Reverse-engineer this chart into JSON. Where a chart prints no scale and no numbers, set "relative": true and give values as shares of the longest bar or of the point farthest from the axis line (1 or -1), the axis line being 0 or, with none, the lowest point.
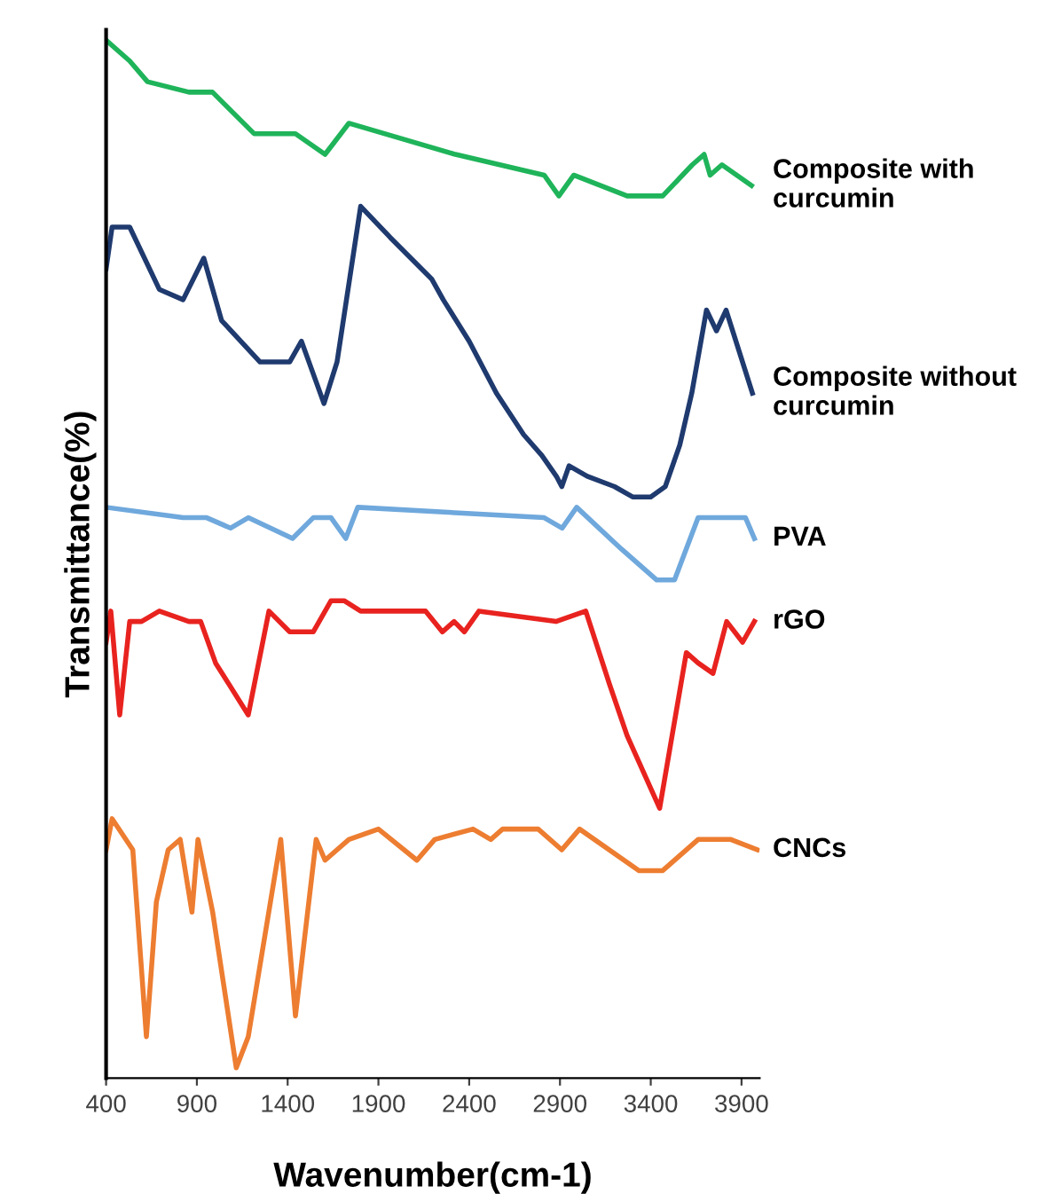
{
  "chart_data": {
    "type": "line",
    "relative": true,
    "xlabel": "Wavenumber(cm-1)",
    "ylabel": "Transmittance(%)",
    "xlim": [
      400,
      4000
    ],
    "xticks": [
      400,
      900,
      1400,
      1900,
      2400,
      2900,
      3400,
      3900
    ],
    "grid": false,
    "legend": false,
    "marker": "none",
    "line_style": "solid",
    "series": [
      {
        "name": "Composite with curcumin",
        "color": "#1fb45a",
        "x": [
          400,
          530,
          628,
          856,
          986,
          1215,
          1443,
          1606,
          1737,
          2324,
          2813,
          2894,
          2976,
          3270,
          3466,
          3629,
          3694,
          3727,
          3792,
          3955
        ],
        "values": [
          1.0,
          0.98,
          0.96,
          0.95,
          0.95,
          0.91,
          0.91,
          0.89,
          0.92,
          0.89,
          0.87,
          0.85,
          0.87,
          0.85,
          0.85,
          0.88,
          0.89,
          0.87,
          0.88,
          0.86
        ]
      },
      {
        "name": "Composite without curcumin",
        "color": "#1f3a6e",
        "x": [
          400,
          433,
          530,
          693,
          824,
          938,
          1036,
          1248,
          1411,
          1476,
          1600,
          1672,
          1802,
          1965,
          2193,
          2257,
          2400,
          2550,
          2700,
          2800,
          2880,
          2910,
          2950,
          3050,
          3200,
          3300,
          3400,
          3480,
          3560,
          3626,
          3707,
          3762,
          3815,
          3960
        ],
        "values": [
          0.78,
          0.82,
          0.82,
          0.76,
          0.75,
          0.79,
          0.73,
          0.69,
          0.69,
          0.71,
          0.65,
          0.69,
          0.84,
          0.81,
          0.77,
          0.75,
          0.71,
          0.66,
          0.62,
          0.6,
          0.58,
          0.57,
          0.59,
          0.58,
          0.57,
          0.56,
          0.56,
          0.57,
          0.61,
          0.66,
          0.74,
          0.72,
          0.74,
          0.66
        ]
      },
      {
        "name": "PVA",
        "color": "#6fa8dc",
        "x": [
          400,
          824,
          954,
          1085,
          1183,
          1427,
          1541,
          1639,
          1720,
          1786,
          2813,
          2912,
          2992,
          3237,
          3433,
          3531,
          3661,
          3792,
          3922,
          3971
        ],
        "values": [
          0.55,
          0.54,
          0.54,
          0.53,
          0.54,
          0.52,
          0.54,
          0.54,
          0.52,
          0.55,
          0.54,
          0.53,
          0.55,
          0.51,
          0.48,
          0.48,
          0.54,
          0.54,
          0.54,
          0.52
        ]
      },
      {
        "name": "rGO",
        "color": "#e8231f",
        "x": [
          400,
          426,
          475,
          530,
          595,
          693,
          856,
          921,
          1003,
          1183,
          1297,
          1411,
          1541,
          1639,
          1711,
          1802,
          2160,
          2252,
          2317,
          2373,
          2454,
          2878,
          3042,
          3172,
          3270,
          3449,
          3596,
          3661,
          3743,
          3818,
          3906,
          3971
        ],
        "values": [
          0.42,
          0.45,
          0.35,
          0.44,
          0.44,
          0.45,
          0.44,
          0.44,
          0.4,
          0.35,
          0.45,
          0.43,
          0.43,
          0.46,
          0.46,
          0.45,
          0.45,
          0.43,
          0.44,
          0.43,
          0.45,
          0.44,
          0.45,
          0.38,
          0.33,
          0.26,
          0.41,
          0.4,
          0.39,
          0.44,
          0.42,
          0.44
        ]
      },
      {
        "name": "CNCs",
        "color": "#ed7d31",
        "x": [
          400,
          433,
          547,
          622,
          677,
          742,
          808,
          873,
          906,
          987,
          1117,
          1183,
          1362,
          1443,
          1557,
          1606,
          1737,
          1900,
          2112,
          2210,
          2421,
          2519,
          2584,
          2780,
          2910,
          3008,
          3335,
          3466,
          3661,
          3759,
          3841,
          3987
        ],
        "values": [
          0.22,
          0.25,
          0.22,
          0.04,
          0.17,
          0.22,
          0.23,
          0.16,
          0.23,
          0.16,
          0.01,
          0.04,
          0.23,
          0.06,
          0.23,
          0.21,
          0.23,
          0.24,
          0.21,
          0.23,
          0.24,
          0.23,
          0.24,
          0.24,
          0.22,
          0.24,
          0.2,
          0.2,
          0.23,
          0.23,
          0.23,
          0.22
        ]
      }
    ]
  }
}
